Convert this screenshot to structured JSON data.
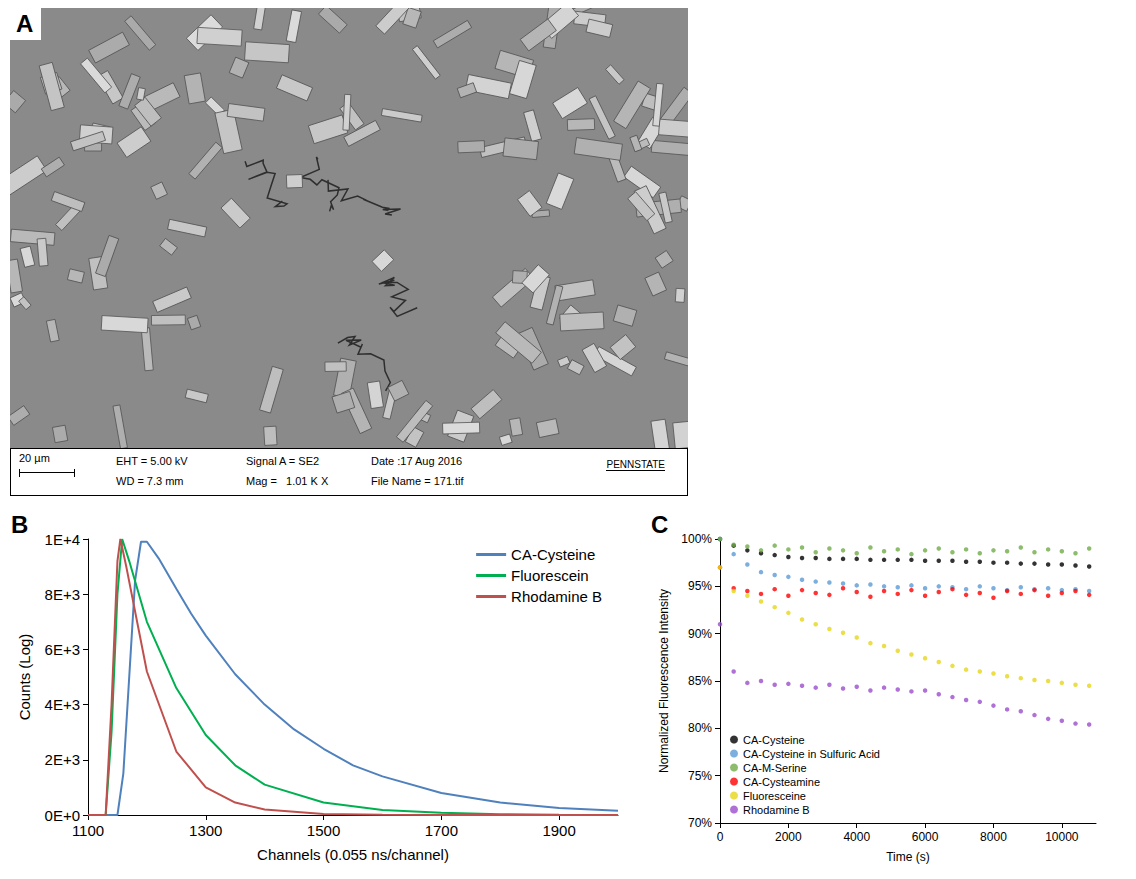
{
  "image_panel": {
    "panel_label": "A",
    "info_bar": {
      "scale_bar": "20 µm",
      "eht": "EHT = 5.00 kV",
      "wd": "WD = 7.3 mm",
      "signal": "Signal A = SE2",
      "mag": "Mag =   1.01 K X",
      "date": "Date :17 Aug 2016",
      "file_name": "File Name = 171.tif",
      "logo": "PENNSTATE"
    }
  },
  "chart_data": [
    {
      "panel_label": "B",
      "type": "line",
      "x_label": "Channels (0.055 ns/channel)",
      "y_label": "Counts (Log)",
      "xlim": [
        1100,
        2000
      ],
      "xticks": [
        1100,
        1300,
        1500,
        1700,
        1900
      ],
      "ylim": [
        0,
        10000
      ],
      "yticks": [
        {
          "value": 0,
          "label": "0E+0"
        },
        {
          "value": 2000,
          "label": "2E+3"
        },
        {
          "value": 4000,
          "label": "4E+3"
        },
        {
          "value": 6000,
          "label": "6E+3"
        },
        {
          "value": 8000,
          "label": "8E+3"
        },
        {
          "value": 10000,
          "label": "1E+4"
        }
      ],
      "grid": false,
      "legend": "upper right",
      "marker": "none",
      "series": [
        {
          "name": "CA-Cysteine",
          "color": "#4f81bd",
          "x": [
            1100,
            1150,
            1160,
            1170,
            1180,
            1190,
            1200,
            1220,
            1250,
            1275,
            1300,
            1350,
            1400,
            1450,
            1500,
            1550,
            1600,
            1700,
            1800,
            1900,
            2000
          ],
          "values": [
            0,
            0,
            1500,
            5000,
            8500,
            9900,
            9900,
            9300,
            8200,
            7300,
            6500,
            5100,
            4000,
            3100,
            2400,
            1800,
            1400,
            800,
            450,
            250,
            150
          ]
        },
        {
          "name": "Fluorescein",
          "color": "#00b050",
          "x": [
            1100,
            1130,
            1140,
            1150,
            1158,
            1170,
            1200,
            1250,
            1300,
            1350,
            1400,
            1500,
            1600,
            1700,
            1800,
            1900,
            2000
          ],
          "values": [
            0,
            0,
            3000,
            8000,
            10000,
            9200,
            7000,
            4600,
            2900,
            1800,
            1100,
            450,
            180,
            80,
            30,
            10,
            0
          ]
        },
        {
          "name": "Rhodamine B",
          "color": "#c0504d",
          "x": [
            1100,
            1130,
            1140,
            1150,
            1155,
            1165,
            1200,
            1250,
            1300,
            1350,
            1400,
            1500,
            1600,
            1700,
            1800,
            1900,
            2000
          ],
          "values": [
            0,
            0,
            4000,
            9200,
            10000,
            9000,
            5200,
            2300,
            1000,
            450,
            200,
            40,
            10,
            0,
            0,
            0,
            0
          ]
        }
      ]
    },
    {
      "panel_label": "C",
      "type": "scatter",
      "x_label": "Time (s)",
      "y_label": "Normalized Fluorescence Intensity",
      "xlim": [
        0,
        11000
      ],
      "xticks": [
        0,
        2000,
        4000,
        6000,
        8000,
        10000
      ],
      "ylim": [
        70,
        100
      ],
      "yticks": [
        {
          "value": 70,
          "label": "70%"
        },
        {
          "value": 75,
          "label": "75%"
        },
        {
          "value": 80,
          "label": "80%"
        },
        {
          "value": 85,
          "label": "85%"
        },
        {
          "value": 90,
          "label": "90%"
        },
        {
          "value": 95,
          "label": "95%"
        },
        {
          "value": 100,
          "label": "100%"
        }
      ],
      "grid": false,
      "legend": "lower left",
      "marker": "circle",
      "x": [
        0,
        400,
        800,
        1200,
        1600,
        2000,
        2400,
        2800,
        3200,
        3600,
        4000,
        4400,
        4800,
        5200,
        5600,
        6000,
        6400,
        6800,
        7200,
        7600,
        8000,
        8400,
        8800,
        9200,
        9600,
        10000,
        10400,
        10800
      ],
      "series": [
        {
          "name": "CA-Cysteine",
          "color": "#000000",
          "values": [
            100,
            99.3,
            98.8,
            98.5,
            98.3,
            98.1,
            98.0,
            98.0,
            97.9,
            97.9,
            97.9,
            97.8,
            97.8,
            97.8,
            97.8,
            97.7,
            97.7,
            97.7,
            97.6,
            97.6,
            97.5,
            97.5,
            97.4,
            97.4,
            97.3,
            97.3,
            97.2,
            97.1
          ]
        },
        {
          "name": "CA-Cysteine in Sulfuric Acid",
          "color": "#5b9bd5",
          "values": [
            100,
            98.4,
            97.3,
            96.5,
            96.2,
            96.0,
            95.7,
            95.5,
            95.4,
            95.3,
            95.1,
            95.2,
            95.0,
            94.9,
            95.1,
            94.8,
            95.0,
            94.9,
            94.7,
            95.0,
            94.8,
            94.6,
            94.9,
            94.7,
            94.8,
            94.6,
            94.7,
            94.5
          ]
        },
        {
          "name": "CA-M-Serine",
          "color": "#70ad47",
          "values": [
            100,
            99.4,
            99.2,
            98.8,
            99.3,
            98.9,
            99.1,
            98.6,
            99.0,
            98.8,
            98.5,
            99.1,
            98.7,
            98.9,
            98.4,
            98.8,
            99.0,
            98.6,
            98.9,
            98.5,
            98.8,
            98.7,
            99.1,
            98.6,
            98.9,
            98.7,
            98.5,
            99.0
          ]
        },
        {
          "name": "CA-Cysteamine",
          "color": "#ff0000",
          "values": [
            97.0,
            94.8,
            94.5,
            94.2,
            94.7,
            94.0,
            94.6,
            94.3,
            94.1,
            94.8,
            94.4,
            93.9,
            94.5,
            94.2,
            94.6,
            94.0,
            94.4,
            94.7,
            94.1,
            94.3,
            93.8,
            94.5,
            94.2,
            94.6,
            94.0,
            94.3,
            94.5,
            94.1
          ]
        },
        {
          "name": "Fluoresceine",
          "color": "#e6d619",
          "values": [
            97.0,
            94.5,
            94.0,
            93.4,
            92.8,
            92.2,
            91.5,
            91.0,
            90.5,
            90.1,
            89.6,
            89.0,
            88.7,
            88.2,
            87.8,
            87.4,
            87.0,
            86.6,
            86.2,
            86.0,
            85.8,
            85.5,
            85.3,
            85.1,
            85.0,
            84.8,
            84.6,
            84.5
          ]
        },
        {
          "name": "Rhodamine B",
          "color": "#9b4dca",
          "values": [
            91.0,
            86.0,
            84.8,
            85.0,
            84.6,
            84.7,
            84.5,
            84.3,
            84.6,
            84.2,
            84.4,
            84.0,
            84.3,
            84.1,
            83.9,
            84.0,
            83.6,
            83.3,
            83.0,
            82.8,
            82.4,
            82.0,
            81.8,
            81.4,
            81.0,
            80.8,
            80.5,
            80.4
          ]
        }
      ]
    }
  ]
}
